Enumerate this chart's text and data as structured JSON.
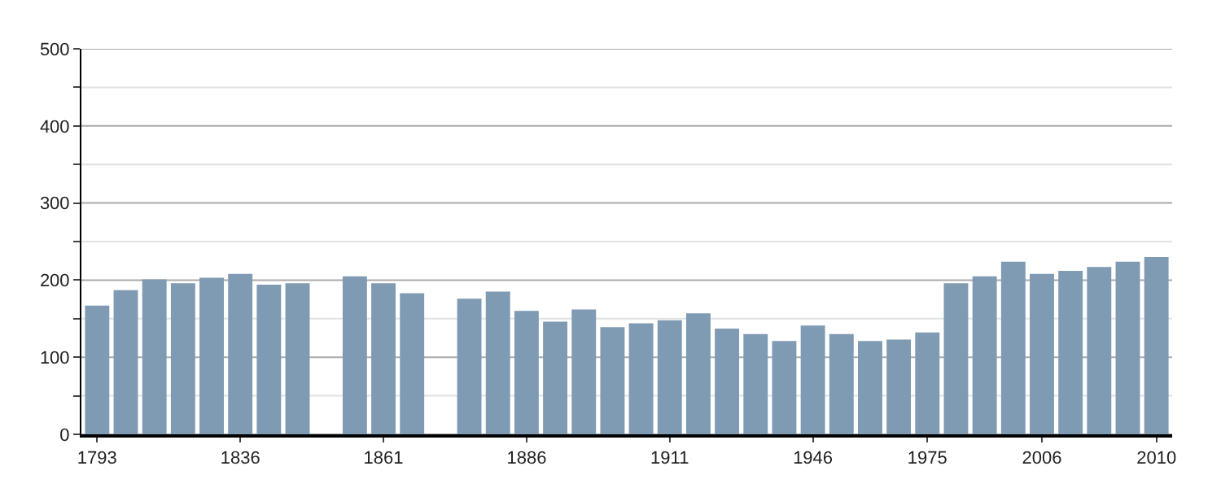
{
  "chart_data": {
    "type": "bar",
    "categories": [
      "1793",
      null,
      null,
      null,
      null,
      "1836",
      null,
      null,
      null,
      null,
      "1861",
      null,
      null,
      null,
      null,
      "1886",
      null,
      null,
      null,
      null,
      "1911",
      null,
      null,
      null,
      null,
      "1946",
      null,
      null,
      null,
      "1975",
      null,
      null,
      null,
      "2006",
      null,
      null,
      null,
      "2010"
    ],
    "values": [
      167,
      187,
      201,
      196,
      203,
      208,
      194,
      196,
      null,
      205,
      196,
      183,
      null,
      176,
      185,
      160,
      146,
      162,
      139,
      144,
      148,
      157,
      137,
      130,
      121,
      141,
      130,
      121,
      123,
      132,
      196,
      205,
      224,
      208,
      212,
      217,
      224,
      230
    ],
    "color": "#7f9ab3",
    "ylim": [
      0,
      500
    ],
    "yticks": [
      0,
      {
        "value": 50,
        "label": null
      },
      100,
      {
        "value": 150,
        "label": null
      },
      200,
      {
        "value": 250,
        "label": null
      },
      300,
      {
        "value": 350,
        "label": null
      },
      400,
      {
        "value": 450,
        "label": null
      },
      500
    ],
    "grid": "y"
  }
}
